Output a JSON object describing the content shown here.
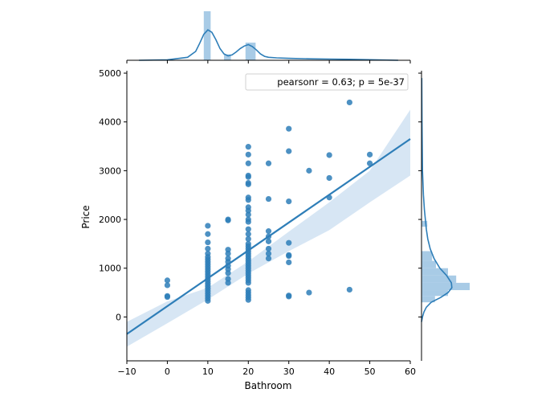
{
  "chart_data": {
    "type": "scatter",
    "xlabel": "Bathroom",
    "ylabel": "Price",
    "xlim": [
      -10,
      60
    ],
    "ylim": [
      -900,
      5050
    ],
    "x_ticks": [
      -10,
      0,
      10,
      20,
      30,
      40,
      50,
      60
    ],
    "y_ticks": [
      0,
      1000,
      2000,
      3000,
      4000,
      5000
    ],
    "annotation": "pearsonr = 0.63; p = 5e-37",
    "colors": {
      "points": "#2e7eb8",
      "line": "#2e7eb8",
      "band": "#c6dbef",
      "hist": "#9ec5e3"
    },
    "points": [
      {
        "x": 0,
        "y": 750
      },
      {
        "x": 0,
        "y": 650
      },
      {
        "x": 0,
        "y": 430
      },
      {
        "x": 0,
        "y": 410
      },
      {
        "x": 10,
        "y": 1870
      },
      {
        "x": 10,
        "y": 1700
      },
      {
        "x": 10,
        "y": 1530
      },
      {
        "x": 10,
        "y": 1400
      },
      {
        "x": 10,
        "y": 1300
      },
      {
        "x": 10,
        "y": 1230
      },
      {
        "x": 10,
        "y": 1180
      },
      {
        "x": 10,
        "y": 1130
      },
      {
        "x": 10,
        "y": 1080
      },
      {
        "x": 10,
        "y": 1030
      },
      {
        "x": 10,
        "y": 980
      },
      {
        "x": 10,
        "y": 930
      },
      {
        "x": 10,
        "y": 880
      },
      {
        "x": 10,
        "y": 830
      },
      {
        "x": 10,
        "y": 780
      },
      {
        "x": 10,
        "y": 730
      },
      {
        "x": 10,
        "y": 680
      },
      {
        "x": 10,
        "y": 630
      },
      {
        "x": 10,
        "y": 580
      },
      {
        "x": 10,
        "y": 530
      },
      {
        "x": 10,
        "y": 480
      },
      {
        "x": 10,
        "y": 430
      },
      {
        "x": 10,
        "y": 380
      },
      {
        "x": 10,
        "y": 330
      },
      {
        "x": 15,
        "y": 2000
      },
      {
        "x": 15,
        "y": 1980
      },
      {
        "x": 15,
        "y": 1380
      },
      {
        "x": 15,
        "y": 1300
      },
      {
        "x": 15,
        "y": 1200
      },
      {
        "x": 15,
        "y": 1130
      },
      {
        "x": 15,
        "y": 1050
      },
      {
        "x": 15,
        "y": 980
      },
      {
        "x": 15,
        "y": 900
      },
      {
        "x": 15,
        "y": 780
      },
      {
        "x": 15,
        "y": 700
      },
      {
        "x": 20,
        "y": 3490
      },
      {
        "x": 20,
        "y": 3330
      },
      {
        "x": 20,
        "y": 3150
      },
      {
        "x": 20,
        "y": 2900
      },
      {
        "x": 20,
        "y": 2870
      },
      {
        "x": 20,
        "y": 2750
      },
      {
        "x": 20,
        "y": 2720
      },
      {
        "x": 20,
        "y": 2450
      },
      {
        "x": 20,
        "y": 2400
      },
      {
        "x": 20,
        "y": 2250
      },
      {
        "x": 20,
        "y": 2180
      },
      {
        "x": 20,
        "y": 2100
      },
      {
        "x": 20,
        "y": 2000
      },
      {
        "x": 20,
        "y": 1950
      },
      {
        "x": 20,
        "y": 1800
      },
      {
        "x": 20,
        "y": 1700
      },
      {
        "x": 20,
        "y": 1600
      },
      {
        "x": 20,
        "y": 1500
      },
      {
        "x": 20,
        "y": 1450
      },
      {
        "x": 20,
        "y": 1400
      },
      {
        "x": 20,
        "y": 1350
      },
      {
        "x": 20,
        "y": 1300
      },
      {
        "x": 20,
        "y": 1250
      },
      {
        "x": 20,
        "y": 1200
      },
      {
        "x": 20,
        "y": 1150
      },
      {
        "x": 20,
        "y": 1100
      },
      {
        "x": 20,
        "y": 1050
      },
      {
        "x": 20,
        "y": 1000
      },
      {
        "x": 20,
        "y": 950
      },
      {
        "x": 20,
        "y": 900
      },
      {
        "x": 20,
        "y": 850
      },
      {
        "x": 20,
        "y": 800
      },
      {
        "x": 20,
        "y": 750
      },
      {
        "x": 20,
        "y": 700
      },
      {
        "x": 20,
        "y": 550
      },
      {
        "x": 20,
        "y": 500
      },
      {
        "x": 20,
        "y": 450
      },
      {
        "x": 20,
        "y": 400
      },
      {
        "x": 20,
        "y": 350
      },
      {
        "x": 25,
        "y": 3150
      },
      {
        "x": 25,
        "y": 2420
      },
      {
        "x": 25,
        "y": 1760
      },
      {
        "x": 25,
        "y": 1650
      },
      {
        "x": 25,
        "y": 1550
      },
      {
        "x": 25,
        "y": 1400
      },
      {
        "x": 25,
        "y": 1300
      },
      {
        "x": 25,
        "y": 1200
      },
      {
        "x": 30,
        "y": 3860
      },
      {
        "x": 30,
        "y": 3400
      },
      {
        "x": 30,
        "y": 2370
      },
      {
        "x": 30,
        "y": 1520
      },
      {
        "x": 30,
        "y": 1270
      },
      {
        "x": 30,
        "y": 1250
      },
      {
        "x": 30,
        "y": 1120
      },
      {
        "x": 30,
        "y": 440
      },
      {
        "x": 30,
        "y": 420
      },
      {
        "x": 35,
        "y": 3000
      },
      {
        "x": 35,
        "y": 500
      },
      {
        "x": 40,
        "y": 3320
      },
      {
        "x": 40,
        "y": 2850
      },
      {
        "x": 40,
        "y": 2450
      },
      {
        "x": 45,
        "y": 4400
      },
      {
        "x": 45,
        "y": 560
      },
      {
        "x": 50,
        "y": 3330
      },
      {
        "x": 50,
        "y": 3150
      }
    ],
    "regression": {
      "x": [
        -10,
        60
      ],
      "y": [
        -350,
        3650
      ]
    },
    "ci_band": {
      "x": [
        -10,
        0,
        10,
        20,
        30,
        40,
        50,
        60
      ],
      "lower": [
        -610,
        -130,
        360,
        890,
        1350,
        1780,
        2350,
        2900
      ],
      "upper": [
        -100,
        320,
        600,
        1140,
        1750,
        2350,
        3000,
        4250
      ]
    },
    "top_hist": [
      {
        "x0": 9,
        "x1": 10.7,
        "h": 1.0
      },
      {
        "x0": 14,
        "x1": 15.7,
        "h": 0.12
      },
      {
        "x0": 19.3,
        "x1": 21.8,
        "h": 0.36
      }
    ],
    "top_kde": {
      "x": [
        -7,
        0,
        5,
        7,
        8,
        9,
        10,
        11,
        12,
        13,
        14,
        15,
        16,
        17,
        18,
        19,
        20,
        21,
        22,
        23,
        24,
        25,
        27,
        30,
        35,
        40,
        45,
        50,
        57
      ],
      "y": [
        0.0,
        0.01,
        0.06,
        0.18,
        0.35,
        0.53,
        0.62,
        0.57,
        0.42,
        0.24,
        0.13,
        0.09,
        0.11,
        0.17,
        0.24,
        0.29,
        0.32,
        0.28,
        0.21,
        0.13,
        0.08,
        0.06,
        0.05,
        0.04,
        0.03,
        0.025,
        0.02,
        0.012,
        0.0
      ]
    },
    "right_hist": [
      {
        "y0": 1850,
        "y1": 1970,
        "w": 0.12
      },
      {
        "y0": 1150,
        "y1": 1350,
        "w": 0.22
      },
      {
        "y0": 1000,
        "y1": 1150,
        "w": 0.3
      },
      {
        "y0": 850,
        "y1": 1000,
        "w": 0.55
      },
      {
        "y0": 700,
        "y1": 850,
        "w": 0.72
      },
      {
        "y0": 550,
        "y1": 700,
        "w": 1.0
      },
      {
        "y0": 430,
        "y1": 550,
        "w": 0.55
      },
      {
        "y0": 300,
        "y1": 430,
        "w": 0.28
      }
    ],
    "right_kde": {
      "y": [
        4900,
        4000,
        3000,
        2500,
        2200,
        2000,
        1800,
        1600,
        1400,
        1200,
        1000,
        850,
        700,
        600,
        500,
        400,
        300,
        200,
        100,
        0,
        -100
      ],
      "x": [
        0.005,
        0.01,
        0.02,
        0.04,
        0.06,
        0.08,
        0.1,
        0.13,
        0.18,
        0.26,
        0.38,
        0.52,
        0.62,
        0.63,
        0.55,
        0.4,
        0.2,
        0.1,
        0.05,
        0.02,
        0.0
      ]
    }
  }
}
